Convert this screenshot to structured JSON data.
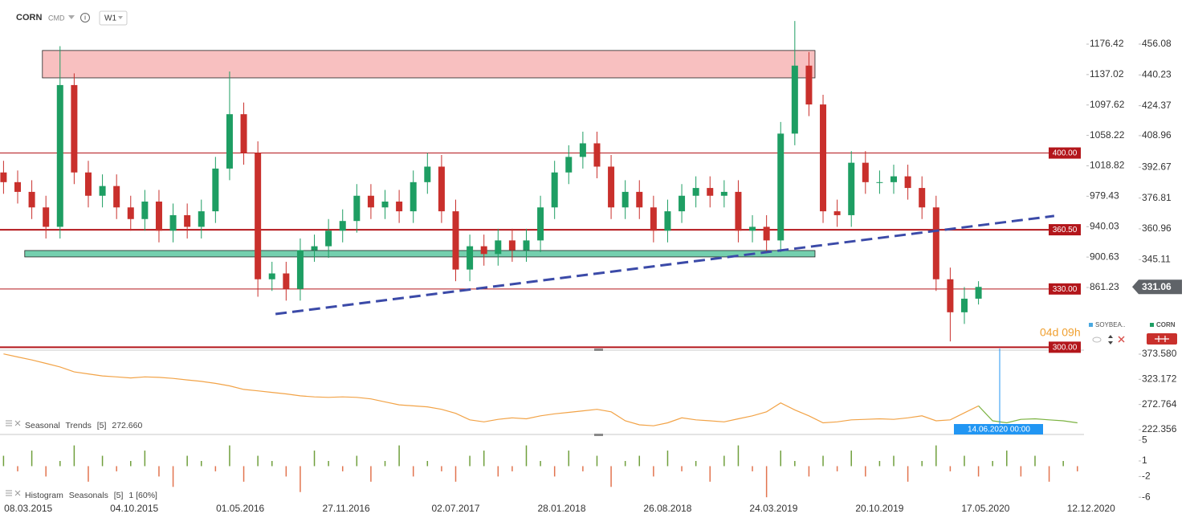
{
  "toolbar": {
    "symbol": "CORN",
    "market": "CMD",
    "interval": "W1"
  },
  "countdown": "04d 09h",
  "legend_items": [
    "SOYBEA..",
    "CORN"
  ],
  "cursor": {
    "x": "14.06.2020",
    "label": "14.06.2020 00:00"
  },
  "chart_data": [
    {
      "type": "candlestick",
      "x": [
        "18.01.2015",
        "15.02.2015",
        "15.03.2015",
        "12.04.2015",
        "10.05.2015",
        "07.06.2015",
        "05.07.2015",
        "02.08.2015",
        "30.08.2015",
        "27.09.2015",
        "25.10.2015",
        "22.11.2015",
        "20.12.2015",
        "17.01.2016",
        "14.02.2016",
        "13.03.2016",
        "10.04.2016",
        "08.05.2016",
        "05.06.2016",
        "03.07.2016",
        "31.07.2016",
        "28.08.2016",
        "25.09.2016",
        "23.10.2016",
        "20.11.2016",
        "18.12.2016",
        "15.01.2017",
        "12.02.2017",
        "12.03.2017",
        "09.04.2017",
        "07.05.2017",
        "04.06.2017",
        "02.07.2017",
        "30.07.2017",
        "27.08.2017",
        "24.09.2017",
        "22.10.2017",
        "19.11.2017",
        "17.12.2017",
        "14.01.2018",
        "11.02.2018",
        "11.03.2018",
        "08.04.2018",
        "06.05.2018",
        "03.06.2018",
        "01.07.2018",
        "29.07.2018",
        "26.08.2018",
        "23.09.2018",
        "21.10.2018",
        "18.11.2018",
        "16.12.2018",
        "13.01.2019",
        "10.02.2019",
        "10.03.2019",
        "07.04.2019",
        "05.05.2019",
        "02.06.2019",
        "30.06.2019",
        "28.07.2019",
        "25.08.2019",
        "22.09.2019",
        "20.10.2019",
        "17.11.2019",
        "15.12.2019",
        "12.01.2020",
        "09.02.2020",
        "08.03.2020",
        "05.04.2020",
        "03.05.2020"
      ],
      "open": [
        390,
        385,
        380,
        372,
        362,
        435,
        390,
        378,
        383,
        372,
        366,
        375,
        360,
        368,
        362,
        370,
        392,
        420,
        400,
        335,
        338,
        330,
        350,
        352,
        360,
        365,
        378,
        372,
        375,
        370,
        385,
        393,
        370,
        340,
        352,
        348,
        355,
        350,
        355,
        372,
        390,
        398,
        405,
        393,
        372,
        380,
        372,
        360,
        370,
        378,
        382,
        378,
        380,
        360,
        362,
        355,
        410,
        445,
        425,
        370,
        368,
        395,
        385,
        385,
        388,
        382,
        372,
        335,
        318,
        325
      ],
      "high": [
        396,
        391,
        386,
        378,
        455,
        441,
        396,
        389,
        389,
        378,
        381,
        381,
        374,
        374,
        376,
        398,
        442,
        426,
        406,
        344,
        344,
        356,
        358,
        366,
        371,
        384,
        384,
        381,
        381,
        391,
        400,
        399,
        376,
        358,
        358,
        361,
        361,
        361,
        378,
        396,
        404,
        411,
        411,
        399,
        386,
        386,
        378,
        376,
        384,
        388,
        388,
        386,
        386,
        368,
        368,
        416,
        468,
        452,
        430,
        376,
        401,
        401,
        391,
        394,
        394,
        388,
        378,
        341,
        331,
        334
      ],
      "low": [
        379,
        374,
        366,
        356,
        356,
        384,
        372,
        372,
        366,
        360,
        360,
        354,
        354,
        356,
        356,
        364,
        386,
        394,
        326,
        329,
        324,
        324,
        344,
        346,
        354,
        359,
        366,
        366,
        364,
        364,
        379,
        364,
        334,
        334,
        342,
        342,
        344,
        344,
        349,
        366,
        384,
        392,
        387,
        366,
        366,
        366,
        354,
        354,
        364,
        372,
        372,
        372,
        354,
        354,
        349,
        349,
        404,
        419,
        364,
        362,
        362,
        379,
        379,
        379,
        376,
        366,
        329,
        303,
        312,
        322
      ],
      "close": [
        385,
        380,
        372,
        362,
        435,
        390,
        378,
        383,
        372,
        366,
        375,
        360,
        368,
        362,
        370,
        392,
        420,
        400,
        335,
        338,
        330,
        350,
        352,
        360,
        365,
        378,
        372,
        375,
        370,
        385,
        393,
        370,
        340,
        352,
        348,
        355,
        350,
        355,
        372,
        390,
        398,
        405,
        393,
        372,
        380,
        372,
        360,
        370,
        378,
        382,
        378,
        380,
        360,
        362,
        355,
        410,
        445,
        425,
        370,
        368,
        395,
        385,
        385,
        388,
        382,
        372,
        335,
        318,
        325,
        331.06
      ],
      "up_color": "#1e9e63",
      "down_color": "#c9302c",
      "xlim": [
        "11.01.2015",
        "14.12.2020"
      ],
      "xticks": [
        "08.03.2015",
        "04.10.2015",
        "01.05.2016",
        "27.11.2016",
        "02.07.2017",
        "28.01.2018",
        "26.08.2018",
        "24.03.2019",
        "20.10.2019",
        "17.05.2020",
        "12.12.2020"
      ],
      "ylim": [
        298.5,
        478.8
      ],
      "yticks": [
        456.08,
        440.23,
        424.37,
        408.96,
        392.67,
        376.81,
        360.96,
        345.11
      ],
      "y2lim": [
        780.1,
        1233.6
      ],
      "y2ticks": [
        1176.42,
        1137.02,
        1097.62,
        1058.22,
        1018.82,
        979.43,
        940.03,
        900.63,
        861.23
      ],
      "levels": [
        {
          "value": 400,
          "label": "400.00"
        },
        {
          "value": 360.5,
          "label": "360.50"
        },
        {
          "value": 330,
          "label": "330.00"
        },
        {
          "value": 300,
          "label": "300.00"
        }
      ],
      "level_color": "#b3161b",
      "zones": [
        {
          "x": [
            "05.04.2015",
            "14.06.2019"
          ],
          "y": [
            438.7,
            452.8
          ],
          "color": "#f8c0c0"
        },
        {
          "x": [
            "01.03.2015",
            "14.06.2019"
          ],
          "y": [
            346.5,
            349.8
          ],
          "color": "#74cfae"
        }
      ],
      "trendline": {
        "x": [
          "10.07.2016",
          "30.09.2020"
        ],
        "y": [
          317.1,
          367.6
        ],
        "color": "#3b4aa8"
      },
      "last_price": 331.06
    },
    {
      "type": "line",
      "series": [
        {
          "color": "#f2a347",
          "x": [
            "18.01.2015",
            "15.02.2015",
            "15.03.2015",
            "12.04.2015",
            "10.05.2015",
            "07.06.2015",
            "05.07.2015",
            "02.08.2015",
            "30.08.2015",
            "27.09.2015",
            "25.10.2015",
            "22.11.2015",
            "20.12.2015",
            "17.01.2016",
            "14.02.2016",
            "13.03.2016",
            "10.04.2016",
            "08.05.2016",
            "05.06.2016",
            "03.07.2016",
            "31.07.2016",
            "28.08.2016",
            "25.09.2016",
            "23.10.2016",
            "20.11.2016",
            "18.12.2016",
            "15.01.2017",
            "12.02.2017",
            "12.03.2017",
            "09.04.2017",
            "07.05.2017",
            "04.06.2017",
            "02.07.2017",
            "30.07.2017",
            "27.08.2017",
            "24.09.2017",
            "22.10.2017",
            "19.11.2017",
            "17.12.2017",
            "14.01.2018",
            "11.02.2018",
            "11.03.2018",
            "08.04.2018",
            "06.05.2018",
            "03.06.2018",
            "01.07.2018",
            "29.07.2018",
            "26.08.2018",
            "23.09.2018",
            "21.10.2018",
            "18.11.2018",
            "16.12.2018",
            "13.01.2019",
            "10.02.2019",
            "10.03.2019",
            "07.04.2019",
            "05.05.2019",
            "02.06.2019",
            "30.06.2019",
            "28.07.2019",
            "25.08.2019",
            "22.09.2019",
            "20.10.2019",
            "17.11.2019",
            "15.12.2019",
            "12.01.2020",
            "09.02.2020",
            "08.03.2020",
            "05.04.2020",
            "03.05.2020"
          ],
          "values": [
            374,
            368,
            362,
            355,
            348,
            338,
            334,
            330,
            328,
            326,
            328,
            327,
            325,
            322,
            319,
            315,
            310,
            303,
            300,
            297,
            294,
            290,
            288,
            287,
            288,
            287,
            284,
            278,
            272,
            270,
            268,
            263,
            255,
            242,
            238,
            243,
            246,
            244,
            250,
            254,
            257,
            260,
            263,
            258,
            240,
            232,
            230,
            236,
            246,
            242,
            240,
            238,
            244,
            250,
            258,
            276,
            262,
            250,
            236,
            238,
            242,
            243,
            244,
            243,
            246,
            250,
            240,
            242,
            256,
            270
          ]
        },
        {
          "color": "#7cb342",
          "x": [
            "03.05.2020",
            "31.05.2020",
            "28.06.2020",
            "26.07.2020",
            "23.08.2020",
            "20.09.2020",
            "18.10.2020",
            "15.11.2020"
          ],
          "values": [
            270,
            240,
            236,
            243,
            244,
            242,
            240,
            236
          ]
        }
      ],
      "legend": [
        "Seasonal",
        "Trends",
        "[5]",
        "272.660"
      ],
      "ylim": [
        212.7,
        380.0
      ],
      "yticks": [
        {
          "value": 373.58,
          "label": "373.580"
        },
        323.172,
        272.764,
        222.356
      ]
    },
    {
      "type": "bar",
      "x": [
        "18.01.2015",
        "15.02.2015",
        "15.03.2015",
        "12.04.2015",
        "10.05.2015",
        "07.06.2015",
        "05.07.2015",
        "02.08.2015",
        "30.08.2015",
        "27.09.2015",
        "25.10.2015",
        "22.11.2015",
        "20.12.2015",
        "17.01.2016",
        "14.02.2016",
        "13.03.2016",
        "10.04.2016",
        "08.05.2016",
        "05.06.2016",
        "03.07.2016",
        "31.07.2016",
        "28.08.2016",
        "25.09.2016",
        "23.10.2016",
        "20.11.2016",
        "18.12.2016",
        "15.01.2017",
        "12.02.2017",
        "12.03.2017",
        "09.04.2017",
        "07.05.2017",
        "04.06.2017",
        "02.07.2017",
        "30.07.2017",
        "27.08.2017",
        "24.09.2017",
        "22.10.2017",
        "19.11.2017",
        "17.12.2017",
        "14.01.2018",
        "11.02.2018",
        "11.03.2018",
        "08.04.2018",
        "06.05.2018",
        "03.06.2018",
        "01.07.2018",
        "29.07.2018",
        "26.08.2018",
        "23.09.2018",
        "21.10.2018",
        "18.11.2018",
        "16.12.2018",
        "13.01.2019",
        "10.02.2019",
        "10.03.2019",
        "07.04.2019",
        "05.05.2019",
        "02.06.2019",
        "30.06.2019",
        "28.07.2019",
        "25.08.2019",
        "22.09.2019",
        "20.10.2019",
        "17.11.2019",
        "15.12.2019",
        "12.01.2020",
        "09.02.2020",
        "08.03.2020",
        "05.04.2020",
        "03.05.2020",
        "31.05.2020",
        "28.06.2020",
        "26.07.2020",
        "23.08.2020",
        "20.09.2020",
        "18.10.2020",
        "15.11.2020"
      ],
      "values": [
        2,
        -1,
        3,
        -2,
        1,
        4,
        -3,
        2,
        -1,
        1,
        3,
        -2,
        -4,
        2,
        1,
        -1,
        4,
        -3,
        2,
        1,
        -2,
        -5,
        3,
        1,
        -1,
        2,
        -3,
        1,
        4,
        -2,
        1,
        -1,
        -3,
        2,
        3,
        -2,
        -1,
        4,
        1,
        -2,
        3,
        -1,
        2,
        -4,
        1,
        2,
        -2,
        3,
        -1,
        1,
        -3,
        2,
        4,
        -1,
        -6,
        3,
        1,
        -2,
        2,
        -1,
        3,
        -2,
        1,
        2,
        -3,
        1,
        4,
        -1,
        2,
        -2,
        1,
        3,
        -2,
        2,
        -3,
        1,
        -1
      ],
      "positive_color": "#6f9f3c",
      "negative_color": "#e2744f",
      "legend": [
        "Histogram",
        "Seasonals",
        "[5]",
        "1 [60%]"
      ],
      "ylim": [
        -6.9,
        5.8
      ],
      "yticks": [
        5,
        1,
        -2,
        -6
      ]
    }
  ]
}
